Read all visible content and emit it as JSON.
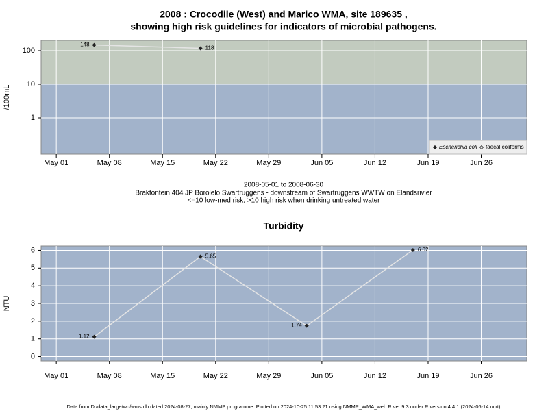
{
  "chart_data": [
    {
      "type": "line",
      "title": [
        "2008 : Crocodile (West) and Marico WMA, site 189635 ,",
        "showing high risk guidelines for indicators of microbial pathogens."
      ],
      "subtitle": [
        "2008-05-01 to 2008-06-30",
        "Brakfontein 404 JP Borolelo Swartruggens - downstream of Swartruggens WWTW on Elandsrivier",
        "<=10 low-med risk; >10 high risk when drinking untreated water"
      ],
      "ylabel": "/100mL",
      "x": [
        "2008-05-06",
        "2008-05-20"
      ],
      "series": [
        {
          "name": "Escherichia coli",
          "color": "#222222",
          "values": [
            148,
            118
          ]
        },
        {
          "name": "faecal coliforms",
          "color": "#222222",
          "values": [
            null,
            null
          ]
        }
      ],
      "xlim": [
        "2008-04-29",
        "2008-07-02"
      ],
      "xticks": [
        {
          "value": "2008-05-01",
          "label": "May 01"
        },
        {
          "value": "2008-05-08",
          "label": "May 08"
        },
        {
          "value": "2008-05-15",
          "label": "May 15"
        },
        {
          "value": "2008-05-22",
          "label": "May 22"
        },
        {
          "value": "2008-05-29",
          "label": "May 29"
        },
        {
          "value": "2008-06-05",
          "label": "Jun 05"
        },
        {
          "value": "2008-06-12",
          "label": "Jun 12"
        },
        {
          "value": "2008-06-19",
          "label": "Jun 19"
        },
        {
          "value": "2008-06-26",
          "label": "Jun 26"
        }
      ],
      "ylim": [
        0.083,
        202
      ],
      "yticks": [
        1,
        10,
        100
      ],
      "log_scale": true,
      "grid": true,
      "threshold": 10,
      "band_colors": {
        "above": "#c2cbbf",
        "below": "#a2b3cb"
      },
      "legend": "bottom-right"
    },
    {
      "type": "line",
      "title": "Turbidity",
      "ylabel": "NTU",
      "x": [
        "2008-05-06",
        "2008-05-20",
        "2008-06-03",
        "2008-06-17"
      ],
      "series": [
        {
          "name": "Turbidity",
          "color": "#222222",
          "values": [
            1.12,
            5.65,
            1.74,
            6.02
          ]
        }
      ],
      "xlim": [
        "2008-04-29",
        "2008-07-02"
      ],
      "xticks": [
        {
          "value": "2008-05-01",
          "label": "May 01"
        },
        {
          "value": "2008-05-08",
          "label": "May 08"
        },
        {
          "value": "2008-05-15",
          "label": "May 15"
        },
        {
          "value": "2008-05-22",
          "label": "May 22"
        },
        {
          "value": "2008-05-29",
          "label": "May 29"
        },
        {
          "value": "2008-06-05",
          "label": "Jun 05"
        },
        {
          "value": "2008-06-12",
          "label": "Jun 12"
        },
        {
          "value": "2008-06-19",
          "label": "Jun 19"
        },
        {
          "value": "2008-06-26",
          "label": "Jun 26"
        }
      ],
      "ylim": [
        -0.25,
        6.25
      ],
      "yticks": [
        0,
        1,
        2,
        3,
        4,
        5,
        6
      ],
      "log_scale": false,
      "grid": true,
      "background": "#a2b3cb"
    }
  ],
  "footer": "Data from D:/data_large/wq/wms.db dated 2024-08-27, mainly NMMP programme. Plotted on 2024-10-25 11:53:21 using NMMP_WMA_web.R ver 9.3 under R version 4.4.1 (2024-06-14 ucrt)"
}
